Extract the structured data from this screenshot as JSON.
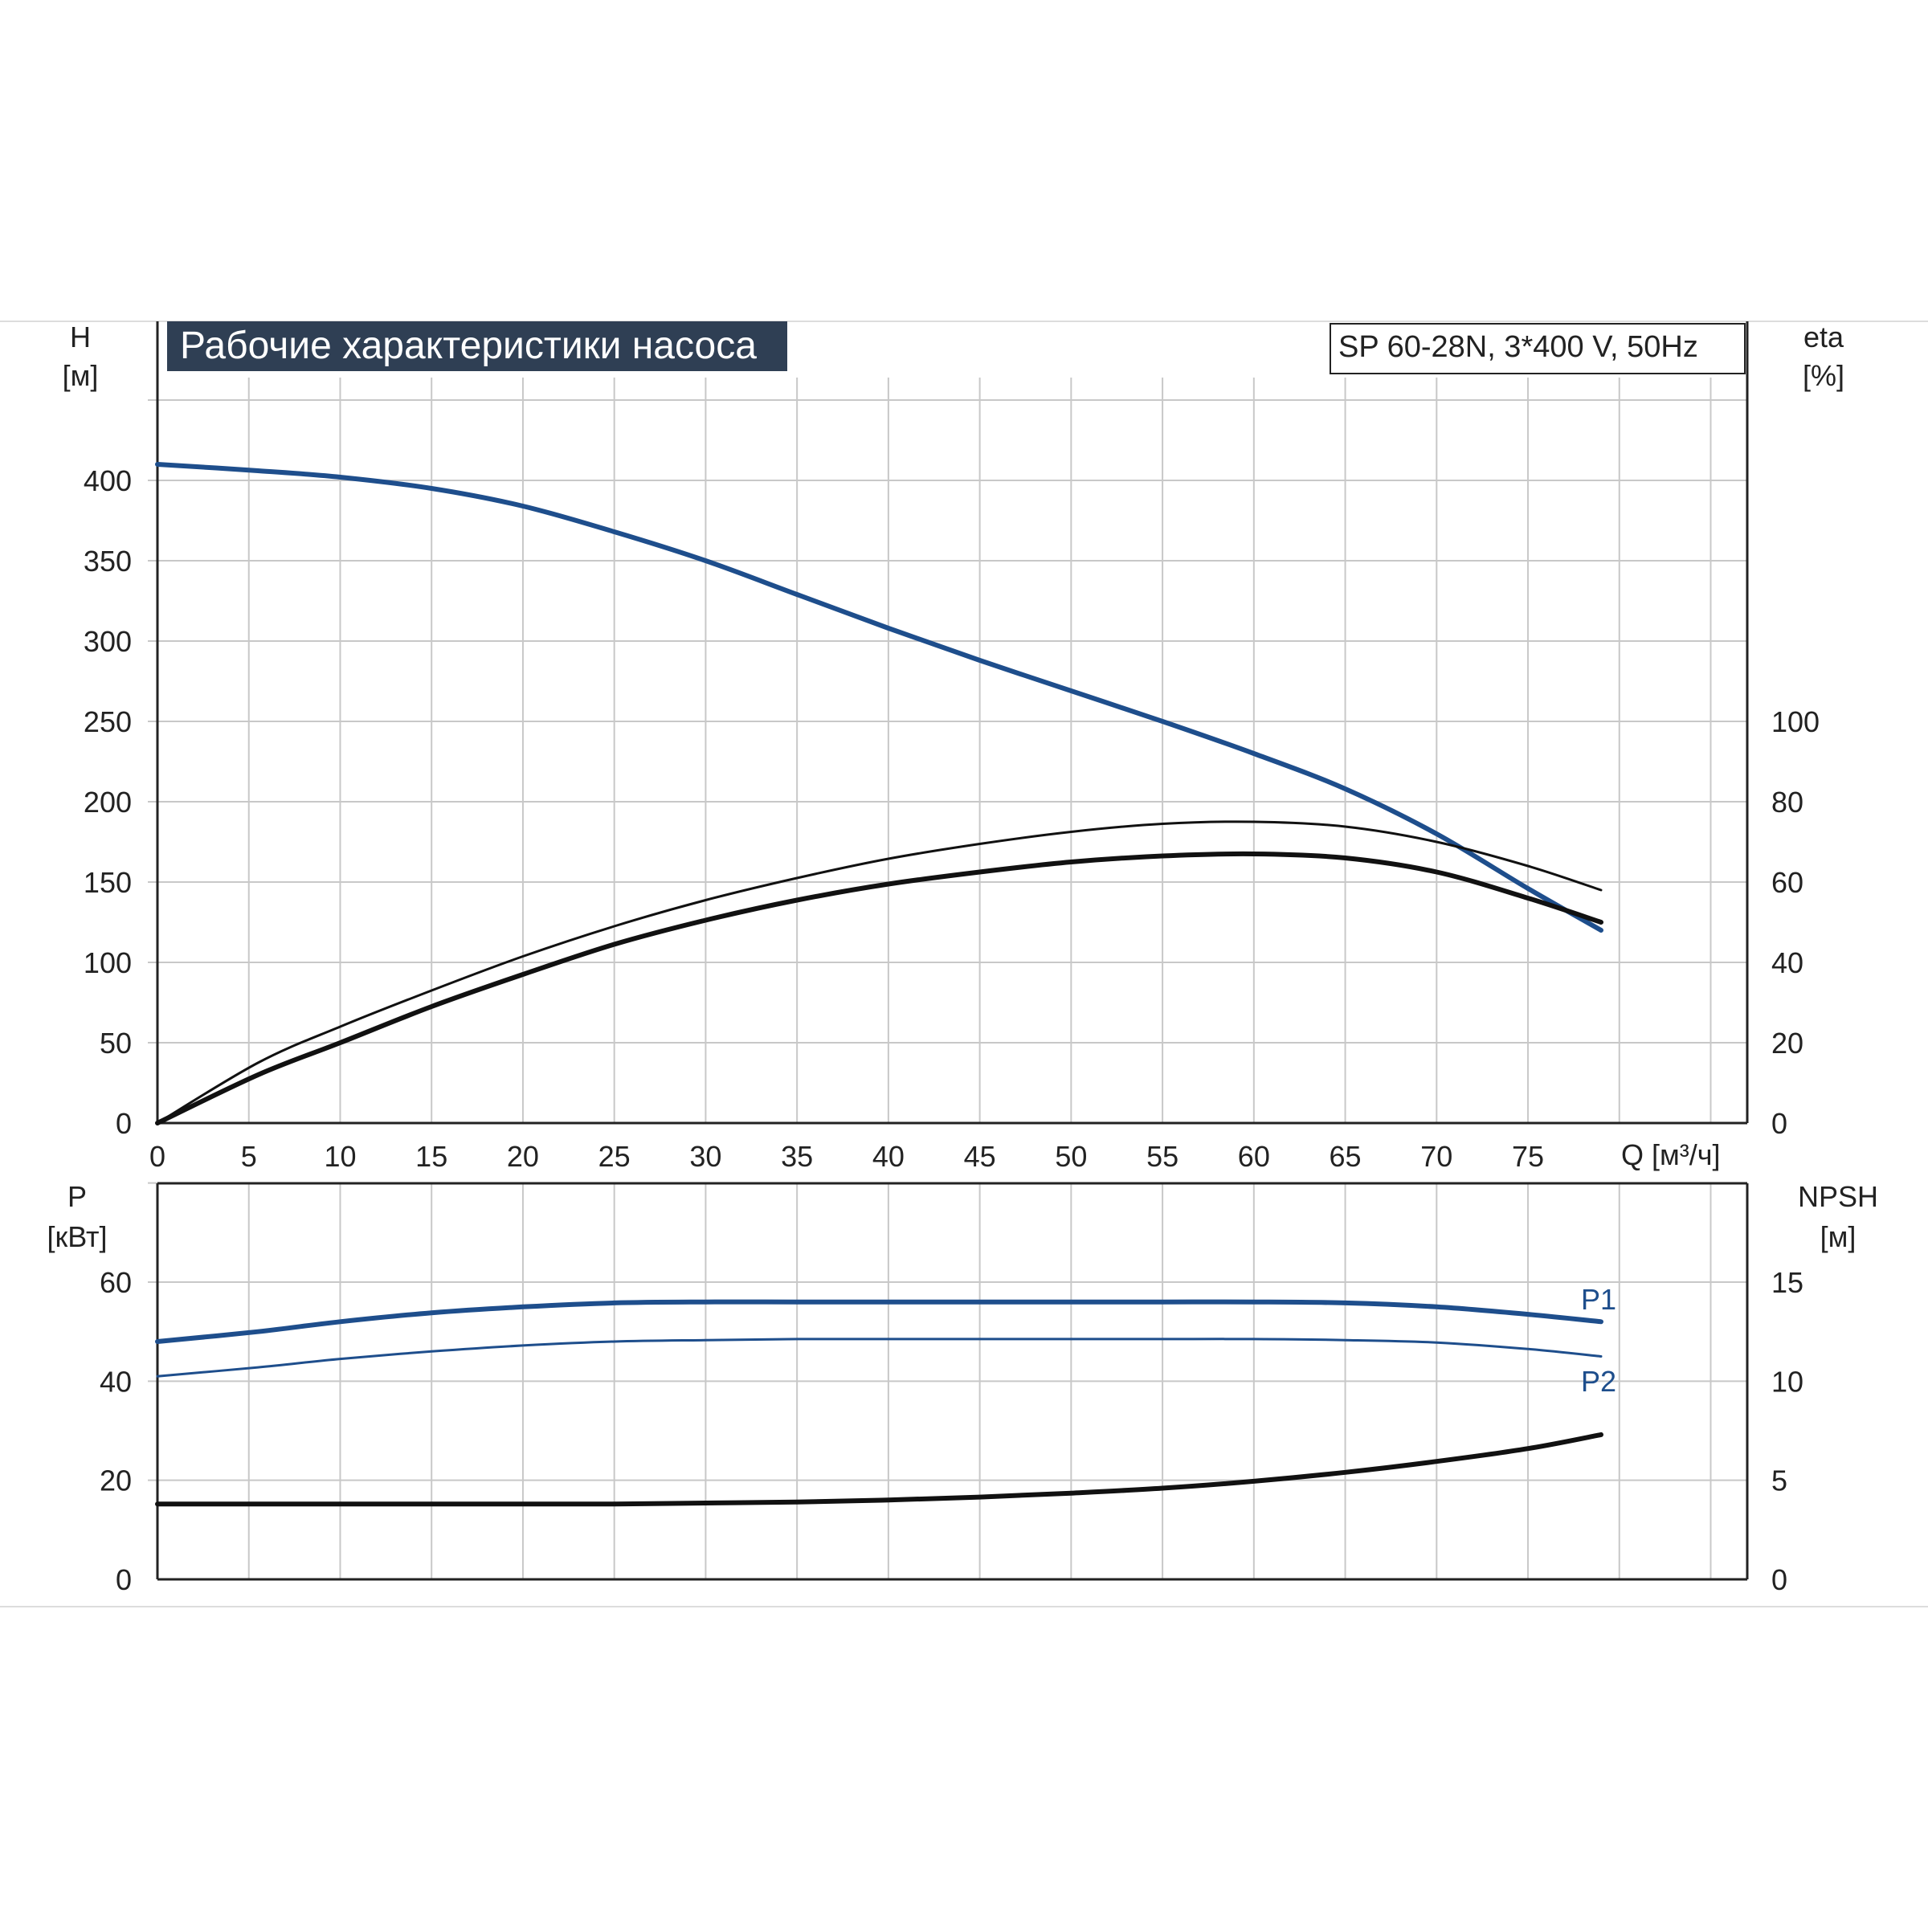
{
  "title": "Рабочие характеристики насоса",
  "model_label": "SP 60-28N, 3*400 V, 50Hz",
  "colors": {
    "blue": "#1e4e8c",
    "black": "#111111",
    "grid": "#c8c8c8",
    "title_bg": "#2f3f54",
    "title_fg": "#ffffff"
  },
  "chart_data": [
    {
      "type": "line",
      "panel": "top",
      "xlabel": "Q [м³/ч]",
      "x_ticks": [
        "0",
        "5",
        "10",
        "15",
        "20",
        "25",
        "30",
        "35",
        "40",
        "45",
        "50",
        "55",
        "60",
        "65",
        "70",
        "75"
      ],
      "xlim": [
        0,
        87
      ],
      "y_left": {
        "label_top": "H",
        "label_unit": "[м]",
        "ticks": [
          "0",
          "50",
          "100",
          "150",
          "200",
          "250",
          "300",
          "350",
          "400"
        ],
        "ylim": [
          0,
          450
        ]
      },
      "y_right": {
        "label_top": "eta",
        "label_unit": "[%]",
        "ticks": [
          "0",
          "20",
          "40",
          "60",
          "80",
          "100"
        ],
        "ylim": [
          0,
          180
        ]
      },
      "grid": true,
      "series": [
        {
          "key": "H",
          "axis": "left",
          "color": "blue",
          "x": [
            0,
            5.5,
            10,
            15,
            20,
            25,
            30,
            35,
            40,
            45,
            50,
            55,
            60,
            65,
            70,
            75,
            79
          ],
          "y": [
            410,
            406,
            402,
            395,
            384,
            368,
            350,
            329,
            308,
            288,
            269,
            250,
            230,
            208,
            180,
            146,
            120
          ]
        },
        {
          "key": "eta_thin",
          "axis": "right",
          "color": "black",
          "x": [
            0,
            5.5,
            10,
            15,
            20,
            25,
            30,
            35,
            40,
            45,
            50,
            55,
            60,
            65,
            70,
            75,
            79
          ],
          "y": [
            0,
            15,
            24,
            33,
            41.5,
            49,
            55.5,
            61,
            65.8,
            69.5,
            72.5,
            74.5,
            75,
            73.8,
            70,
            64,
            58
          ]
        },
        {
          "key": "eta_thick",
          "axis": "right",
          "color": "black",
          "x": [
            0,
            5.5,
            10,
            15,
            20,
            25,
            30,
            35,
            40,
            45,
            50,
            55,
            60,
            65,
            70,
            75,
            79
          ],
          "y": [
            0,
            12,
            20,
            29,
            37,
            44.5,
            50.5,
            55.5,
            59.5,
            62.5,
            65,
            66.5,
            67,
            66,
            62.5,
            56,
            50
          ]
        }
      ]
    },
    {
      "type": "line",
      "panel": "bottom",
      "xlim": [
        0,
        87
      ],
      "y_left": {
        "label_top": "P",
        "label_unit": "[кВт]",
        "ticks": [
          "0",
          "20",
          "40",
          "60"
        ],
        "ylim": [
          0,
          80
        ]
      },
      "y_right": {
        "label_top": "NPSH",
        "label_unit": "[м]",
        "ticks": [
          "0",
          "5",
          "10",
          "15"
        ],
        "ylim": [
          0,
          20
        ]
      },
      "grid": true,
      "series": [
        {
          "key": "P1",
          "name": "P1",
          "axis": "left",
          "color": "blue",
          "x": [
            0,
            5.5,
            10,
            15,
            20,
            25,
            30,
            35,
            40,
            45,
            50,
            55,
            60,
            65,
            70,
            75,
            79
          ],
          "y": [
            48,
            50,
            52,
            53.8,
            55,
            55.8,
            56,
            56,
            56,
            56,
            56,
            56,
            56,
            55.8,
            55,
            53.5,
            52
          ]
        },
        {
          "key": "P2",
          "name": "P2",
          "axis": "left",
          "color": "blue",
          "x": [
            0,
            5.5,
            10,
            15,
            20,
            25,
            30,
            35,
            40,
            45,
            50,
            55,
            60,
            65,
            70,
            75,
            79
          ],
          "y": [
            41,
            42.8,
            44.5,
            46,
            47.2,
            48,
            48.3,
            48.5,
            48.5,
            48.5,
            48.5,
            48.5,
            48.5,
            48.3,
            47.8,
            46.5,
            45
          ]
        },
        {
          "key": "NPSH",
          "axis": "right",
          "color": "black",
          "x": [
            0,
            5.5,
            10,
            15,
            20,
            25,
            30,
            35,
            40,
            45,
            50,
            55,
            60,
            65,
            70,
            75,
            79
          ],
          "y": [
            3.8,
            3.8,
            3.8,
            3.8,
            3.8,
            3.8,
            3.85,
            3.9,
            4.0,
            4.15,
            4.35,
            4.6,
            4.95,
            5.4,
            5.95,
            6.6,
            7.3
          ]
        }
      ]
    }
  ]
}
